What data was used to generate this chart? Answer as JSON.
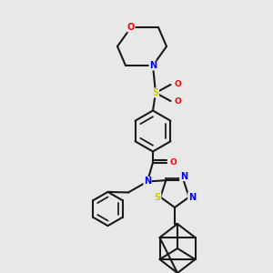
{
  "bg_color": "#e8e8e8",
  "bond_color": "#1a1a1a",
  "bond_lw": 1.5,
  "atom_colors": {
    "O": "#ff0000",
    "N": "#0000ff",
    "S": "#cccc00",
    "C": "#1a1a1a"
  },
  "figsize": [
    3.0,
    3.0
  ],
  "dpi": 100
}
